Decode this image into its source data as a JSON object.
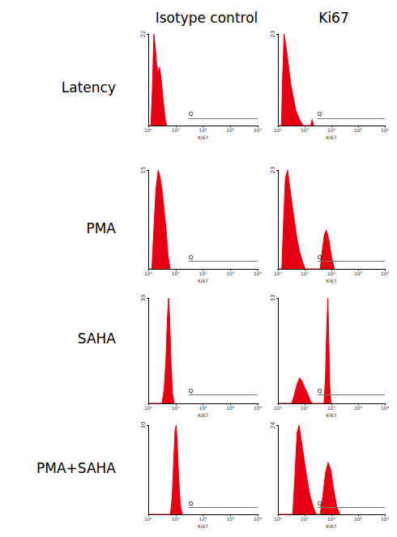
{
  "columns": [
    "Isotype control",
    "Ki67"
  ],
  "rows": [
    "Latency",
    "PMA",
    "SAHA",
    "PMA+SAHA"
  ],
  "chart_data": [
    {
      "type": "area",
      "xlabel": "Ki67",
      "log": "x",
      "color": "#e60012",
      "xlim": [
        1,
        10000
      ],
      "xticks": [
        {
          "value": 1,
          "label": "10⁰"
        },
        {
          "value": 10,
          "label": "10¹"
        },
        {
          "value": 100,
          "label": "10²"
        },
        {
          "value": 1000,
          "label": "10³"
        },
        {
          "value": 10000,
          "label": "10⁴"
        }
      ],
      "ylim": [
        0,
        22
      ],
      "yticks": [
        22
      ],
      "annotations": [
        {
          "text": "Q",
          "x_range": [
            30,
            10000
          ]
        }
      ],
      "x": [
        1,
        1.25,
        1.4,
        1.6,
        1.8,
        2,
        2.3,
        2.6,
        3,
        3.4,
        3.8,
        4.3,
        4.8
      ],
      "values": [
        0,
        0,
        8,
        22,
        19,
        15,
        13,
        14,
        11,
        7,
        4,
        1,
        0
      ]
    },
    {
      "type": "area",
      "xlabel": "Ki67",
      "log": "x",
      "color": "#e60012",
      "xlim": [
        1,
        10000
      ],
      "xticks": [
        {
          "value": 1,
          "label": "10⁰"
        },
        {
          "value": 10,
          "label": "10¹"
        },
        {
          "value": 100,
          "label": "10²"
        },
        {
          "value": 1000,
          "label": "10³"
        },
        {
          "value": 10000,
          "label": "10⁴"
        }
      ],
      "ylim": [
        0,
        23
      ],
      "yticks": [
        23
      ],
      "annotations": [
        {
          "text": "Q",
          "x_range": [
            30,
            10000
          ]
        }
      ],
      "x": [
        1,
        1.35,
        1.5,
        1.7,
        1.9,
        2.2,
        2.6,
        3.1,
        3.8,
        4.6,
        5.6,
        7,
        9,
        17,
        19,
        22
      ],
      "values": [
        0,
        0,
        12,
        23,
        21,
        18,
        14,
        10,
        7,
        4,
        2.5,
        1,
        0,
        0,
        1.5,
        0
      ]
    },
    {
      "type": "area",
      "xlabel": "Ki67",
      "log": "x",
      "color": "#e60012",
      "xlim": [
        1,
        10000
      ],
      "xticks": [
        {
          "value": 1,
          "label": "10⁰"
        },
        {
          "value": 10,
          "label": "10¹"
        },
        {
          "value": 100,
          "label": "10²"
        },
        {
          "value": 1000,
          "label": "10³"
        },
        {
          "value": 10000,
          "label": "10⁴"
        }
      ],
      "ylim": [
        0,
        15
      ],
      "yticks": [
        15
      ],
      "annotations": [
        {
          "text": "Q",
          "x_range": [
            30,
            10000
          ]
        }
      ],
      "x": [
        1,
        1.35,
        1.6,
        1.9,
        2.3,
        2.7,
        3.2,
        3.8,
        4.5,
        5.3,
        6.3
      ],
      "values": [
        0,
        0,
        6,
        12,
        15,
        14,
        12,
        9,
        6,
        2,
        0
      ]
    },
    {
      "type": "area",
      "xlabel": "Ki67",
      "log": "x",
      "color": "#e60012",
      "xlim": [
        1,
        10000
      ],
      "xticks": [
        {
          "value": 1,
          "label": "10⁰"
        },
        {
          "value": 10,
          "label": "10¹"
        },
        {
          "value": 100,
          "label": "10²"
        },
        {
          "value": 1000,
          "label": "10³"
        },
        {
          "value": 10000,
          "label": "10⁴"
        }
      ],
      "ylim": [
        0,
        23
      ],
      "yticks": [
        23
      ],
      "annotations": [
        {
          "text": "Q",
          "x_range": [
            30,
            10000
          ]
        }
      ],
      "x": [
        1,
        1.4,
        1.6,
        1.9,
        2.3,
        2.8,
        3.4,
        4.2,
        5.2,
        6.5,
        8.5,
        10.5,
        38,
        45,
        55,
        65,
        80,
        100,
        130
      ],
      "values": [
        0,
        0,
        10,
        21,
        23,
        19,
        15,
        11,
        7,
        4,
        1.5,
        0,
        0,
        4,
        8,
        9,
        7,
        3,
        0
      ]
    },
    {
      "type": "area",
      "xlabel": "Ki67",
      "log": "x",
      "color": "#e60012",
      "xlim": [
        1,
        10000
      ],
      "xticks": [
        {
          "value": 1,
          "label": "10⁰"
        },
        {
          "value": 10,
          "label": "10¹"
        },
        {
          "value": 100,
          "label": "10²"
        },
        {
          "value": 1000,
          "label": "10³"
        },
        {
          "value": 10000,
          "label": "10⁴"
        }
      ],
      "ylim": [
        0,
        30
      ],
      "yticks": [
        30
      ],
      "annotations": [
        {
          "text": "Q",
          "x_range": [
            30,
            10000
          ]
        }
      ],
      "x": [
        1,
        3.2,
        3.8,
        4.4,
        5,
        5.5,
        6,
        6.8,
        7.7,
        8.8
      ],
      "values": [
        0,
        0,
        4,
        12,
        24,
        30,
        25,
        12,
        3,
        0
      ]
    },
    {
      "type": "area",
      "xlabel": "Ki67",
      "log": "x",
      "color": "#e60012",
      "xlim": [
        1,
        10000
      ],
      "xticks": [
        {
          "value": 1,
          "label": "10⁰"
        },
        {
          "value": 10,
          "label": "10¹"
        },
        {
          "value": 100,
          "label": "10²"
        },
        {
          "value": 1000,
          "label": "10³"
        },
        {
          "value": 10000,
          "label": "10⁴"
        }
      ],
      "ylim": [
        0,
        33
      ],
      "yticks": [
        33
      ],
      "annotations": [
        {
          "text": "Q",
          "x_range": [
            30,
            10000
          ]
        }
      ],
      "x": [
        1,
        3.3,
        4.2,
        5.2,
        6.5,
        8,
        10,
        13,
        16,
        19,
        53,
        60,
        67,
        74,
        80,
        88,
        96
      ],
      "values": [
        0,
        0,
        3,
        6,
        8,
        7,
        5,
        3,
        1,
        0,
        0,
        8,
        24,
        33,
        20,
        5,
        0
      ]
    },
    {
      "type": "area",
      "xlabel": "Ki67",
      "log": "x",
      "color": "#e60012",
      "xlim": [
        1,
        10000
      ],
      "xticks": [
        {
          "value": 1,
          "label": "10⁰"
        },
        {
          "value": 10,
          "label": "10¹"
        },
        {
          "value": 100,
          "label": "10²"
        },
        {
          "value": 1000,
          "label": "10³"
        },
        {
          "value": 10000,
          "label": "10⁴"
        }
      ],
      "ylim": [
        0,
        30
      ],
      "yticks": [
        30
      ],
      "annotations": [
        {
          "text": "Q",
          "x_range": [
            30,
            10000
          ]
        }
      ],
      "x": [
        1,
        6.5,
        7.5,
        8.5,
        9.5,
        10.5,
        11.5,
        13,
        15,
        17.5
      ],
      "values": [
        0,
        0,
        6,
        18,
        28,
        30,
        24,
        12,
        3,
        0
      ]
    },
    {
      "type": "area",
      "xlabel": "Ki67",
      "log": "x",
      "color": "#e60012",
      "xlim": [
        1,
        10000
      ],
      "xticks": [
        {
          "value": 1,
          "label": "10⁰"
        },
        {
          "value": 10,
          "label": "10¹"
        },
        {
          "value": 100,
          "label": "10²"
        },
        {
          "value": 1000,
          "label": "10³"
        },
        {
          "value": 10000,
          "label": "10⁴"
        }
      ],
      "ylim": [
        0,
        24
      ],
      "yticks": [
        24
      ],
      "annotations": [
        {
          "text": "Q",
          "x_range": [
            30,
            10000
          ]
        }
      ],
      "x": [
        1,
        3.6,
        4.3,
        5.2,
        6.2,
        7.5,
        9.5,
        12,
        16,
        21,
        27,
        38,
        48,
        60,
        75,
        95,
        120,
        160,
        210
      ],
      "values": [
        0,
        0,
        10,
        22,
        24,
        20,
        15,
        10,
        5,
        2,
        0,
        0,
        5,
        11,
        14,
        12,
        7,
        2,
        0
      ]
    }
  ]
}
